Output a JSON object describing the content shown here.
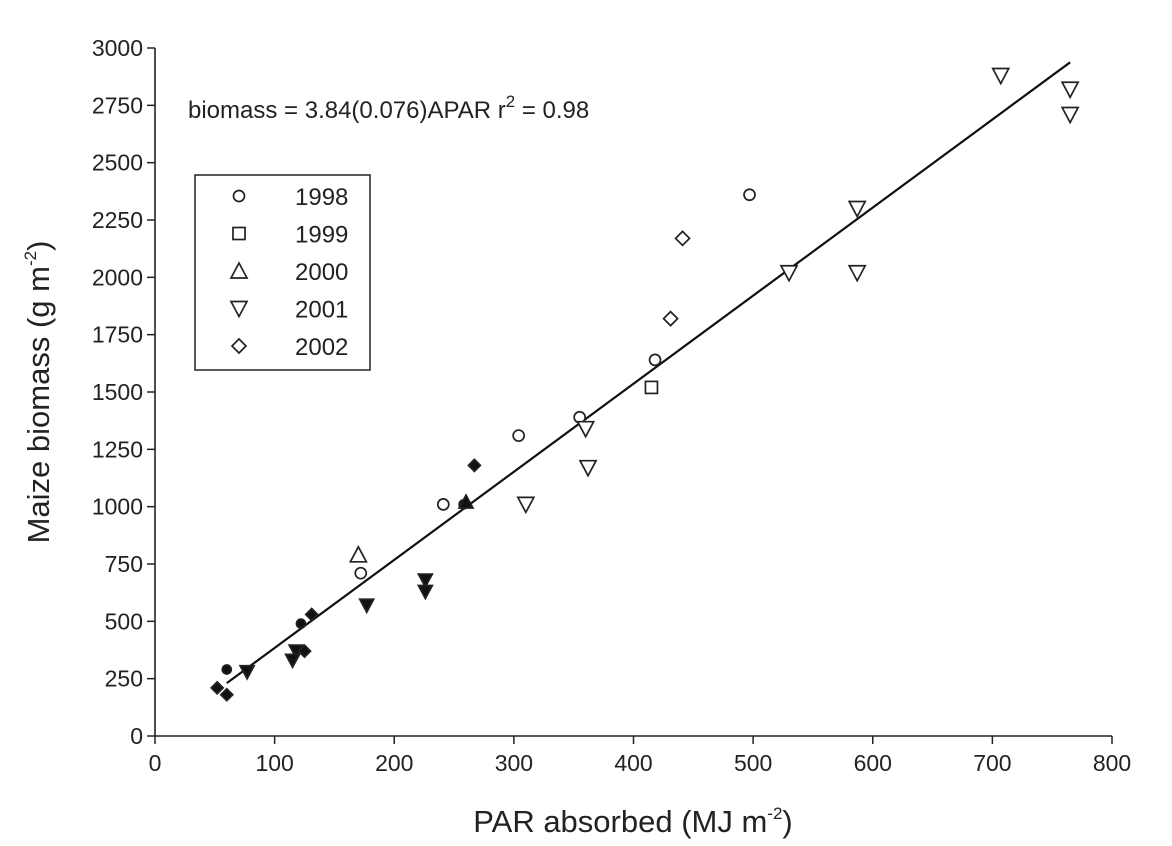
{
  "chart_data": {
    "type": "scatter",
    "xlabel_main": "PAR absorbed (MJ m",
    "xlabel_sup": "-2",
    "xlabel_end": ")",
    "ylabel_main": "Maize biomass (g m",
    "ylabel_sup": "-2",
    "ylabel_end": ")",
    "xlim": [
      0,
      800
    ],
    "ylim": [
      0,
      3000
    ],
    "xticks": [
      0,
      100,
      200,
      300,
      400,
      500,
      600,
      700,
      800
    ],
    "yticks": [
      0,
      250,
      500,
      750,
      1000,
      1250,
      1500,
      1750,
      2000,
      2250,
      2500,
      2750,
      3000
    ],
    "annotation": {
      "main": "biomass = 3.84(0.076)APAR r",
      "sup": "2",
      "end": " = 0.98"
    },
    "fit": {
      "slope": 3.84,
      "x_range": [
        60,
        765
      ]
    },
    "legend_position": "upper-left",
    "series": [
      {
        "name": "1998",
        "marker": "circle",
        "points": [
          [
            241,
            1010
          ],
          [
            304,
            1310
          ],
          [
            355,
            1390
          ],
          [
            418,
            1640
          ],
          [
            497,
            2360
          ],
          [
            172,
            710
          ]
        ]
      },
      {
        "name": "1999",
        "marker": "square",
        "points": [
          [
            415,
            1520
          ]
        ]
      },
      {
        "name": "2000",
        "marker": "triangle-up",
        "points": [
          [
            170,
            790
          ]
        ]
      },
      {
        "name": "2001",
        "marker": "triangle-down",
        "points": [
          [
            310,
            1010
          ],
          [
            360,
            1340
          ],
          [
            362,
            1170
          ],
          [
            530,
            2020
          ],
          [
            587,
            2300
          ],
          [
            587,
            2020
          ],
          [
            707,
            2880
          ],
          [
            765,
            2820
          ],
          [
            765,
            2710
          ]
        ]
      },
      {
        "name": "2002",
        "marker": "diamond",
        "points": [
          [
            431,
            1820
          ],
          [
            441,
            2170
          ]
        ]
      }
    ],
    "filled_points": [
      {
        "marker": "circle",
        "x": 60,
        "y": 290
      },
      {
        "marker": "circle",
        "x": 122,
        "y": 490
      },
      {
        "marker": "circle",
        "x": 258,
        "y": 1010
      },
      {
        "marker": "triangle-up",
        "x": 260,
        "y": 1020
      },
      {
        "marker": "triangle-down",
        "x": 77,
        "y": 280
      },
      {
        "marker": "triangle-down",
        "x": 118,
        "y": 370
      },
      {
        "marker": "triangle-down",
        "x": 115,
        "y": 330
      },
      {
        "marker": "triangle-down",
        "x": 177,
        "y": 570
      },
      {
        "marker": "triangle-down",
        "x": 226,
        "y": 680
      },
      {
        "marker": "triangle-down",
        "x": 226,
        "y": 630
      },
      {
        "marker": "diamond",
        "x": 52,
        "y": 210
      },
      {
        "marker": "diamond",
        "x": 60,
        "y": 180
      },
      {
        "marker": "diamond",
        "x": 125,
        "y": 370
      },
      {
        "marker": "diamond",
        "x": 131,
        "y": 530
      },
      {
        "marker": "diamond",
        "x": 267,
        "y": 1180
      }
    ]
  }
}
